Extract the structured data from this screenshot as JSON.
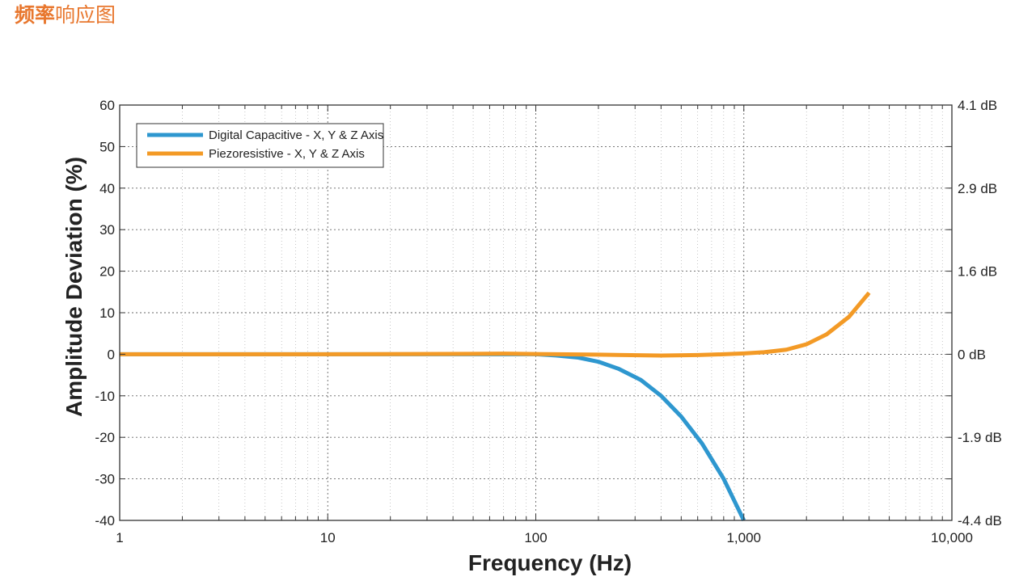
{
  "heading": {
    "bold_part": "频率",
    "rest": "响应图"
  },
  "colors": {
    "heading": "#e8772e",
    "series_blue": "#2e97cf",
    "series_orange": "#f39a26",
    "grid": "#555555",
    "frame": "#333333"
  },
  "chart_data": {
    "type": "line",
    "title": "",
    "xlabel": "Frequency (Hz)",
    "ylabel": "Amplitude Deviation (%)",
    "x_scale": "log",
    "xlim": [
      1,
      10000
    ],
    "ylim": [
      -40,
      60
    ],
    "x_ticks": [
      1,
      10,
      100,
      1000,
      10000
    ],
    "x_tick_labels": [
      "1",
      "10",
      "100",
      "1,000",
      "10,000"
    ],
    "y_ticks": [
      -40,
      -30,
      -20,
      -10,
      0,
      10,
      20,
      30,
      40,
      50,
      60
    ],
    "y_tick_labels": [
      "-40",
      "-30",
      "-20",
      "-10",
      "0",
      "10",
      "20",
      "30",
      "40",
      "50",
      "60"
    ],
    "right_axis_ticks": [
      -40,
      -20,
      0,
      20,
      40,
      60
    ],
    "right_axis_labels": [
      "-4.4 dB",
      "-1.9 dB",
      "0 dB",
      "1.6 dB",
      "2.9 dB",
      "4.1 dB"
    ],
    "grid": true,
    "legend": "top-left",
    "series": [
      {
        "name": "Digital Capacitive - X, Y & Z Axis",
        "color": "#2e97cf",
        "x": [
          1,
          10,
          50,
          100,
          125,
          160,
          200,
          250,
          320,
          400,
          500,
          630,
          800,
          1000
        ],
        "y": [
          0,
          0,
          0,
          0,
          -0.3,
          -0.8,
          -1.8,
          -3.5,
          -6.2,
          -10,
          -15,
          -21.5,
          -30,
          -40
        ]
      },
      {
        "name": "Piezoresistive - X, Y & Z Axis",
        "color": "#f39a26",
        "x": [
          1,
          10,
          50,
          70,
          100,
          200,
          400,
          600,
          800,
          1000,
          1250,
          1600,
          2000,
          2500,
          3200,
          4000
        ],
        "y": [
          0,
          0,
          0.1,
          0.15,
          0.05,
          -0.1,
          -0.3,
          -0.2,
          0,
          0.2,
          0.5,
          1.1,
          2.4,
          4.8,
          9,
          14.8
        ]
      }
    ]
  }
}
